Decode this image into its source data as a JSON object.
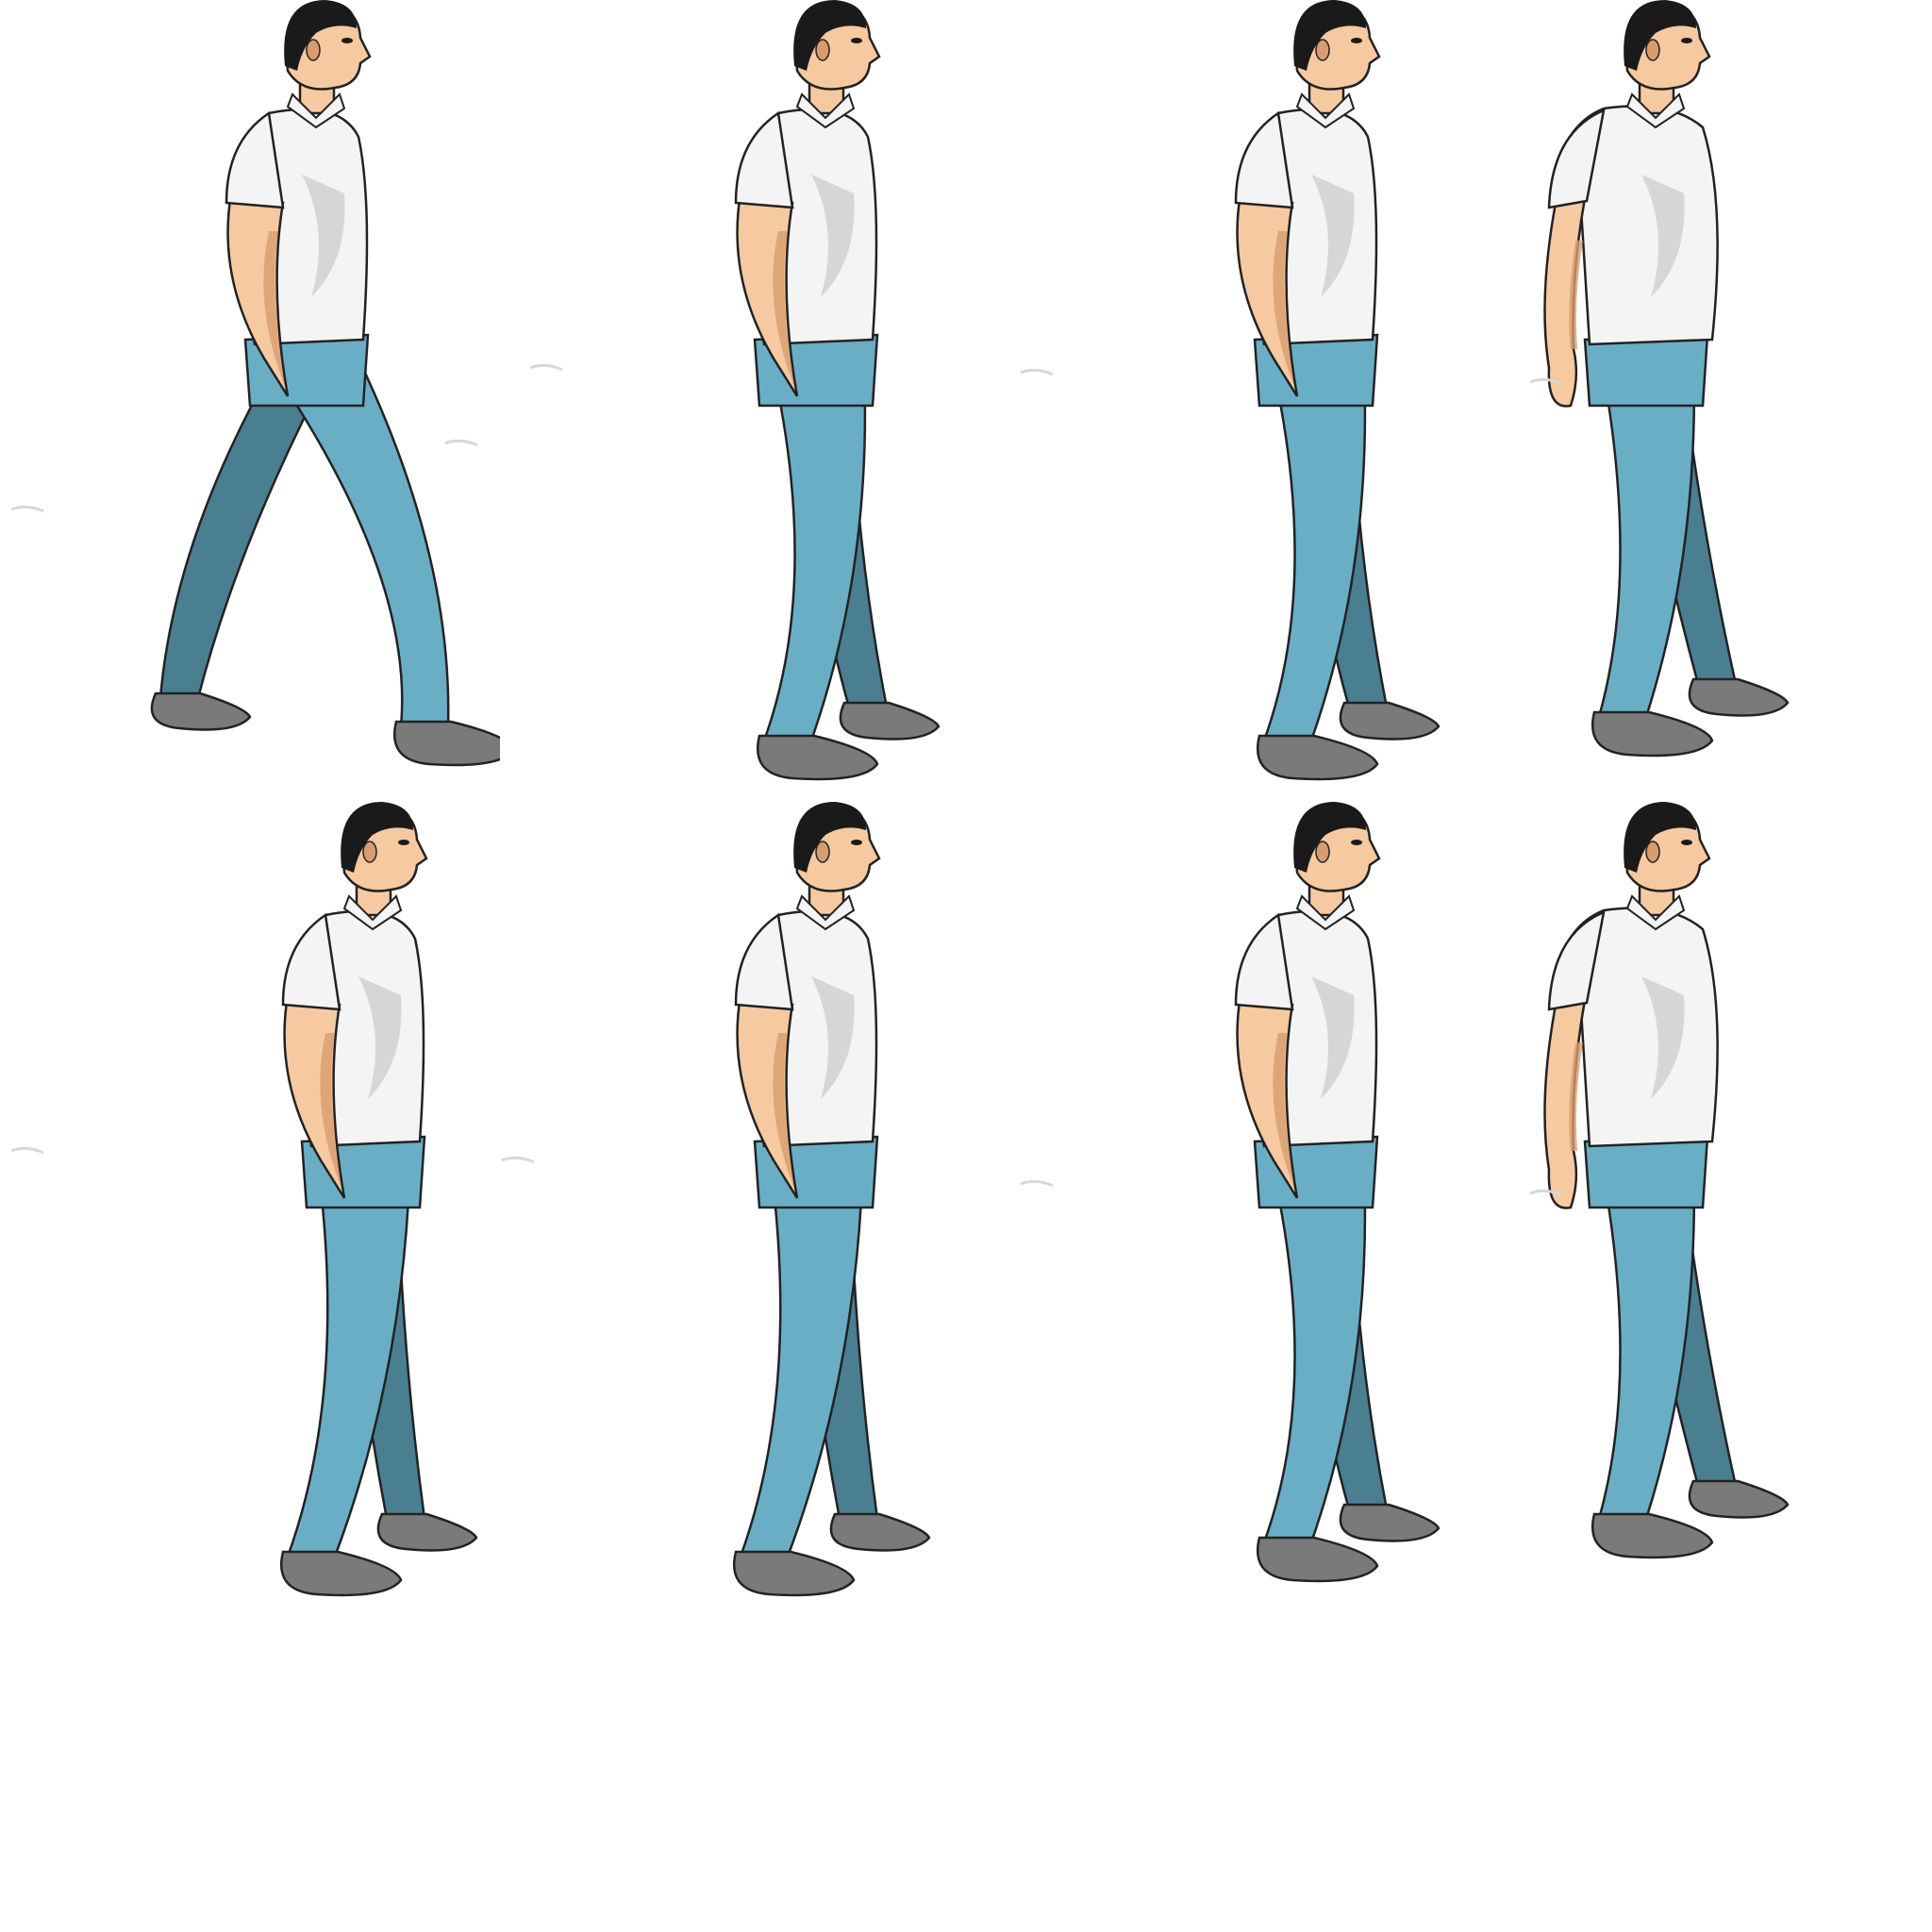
{
  "sheet": {
    "type": "character walk-cycle sprite sheet",
    "rows": 2,
    "columns": 4
  },
  "colors": {
    "background": "#ffffff",
    "hair": "#1a1a1a",
    "skin": "#f6c9a0",
    "skin_shadow": "#d89c6e",
    "shirt": "#f4f4f4",
    "shirt_shadow": "#c9c9c9",
    "pants": "#6aaec6",
    "pants_shadow": "#4a7f92",
    "socks": "#7a7a7a",
    "socks_shadow": "#5e5e5e",
    "outline": "#222222",
    "smudge": "#d8d8d8"
  },
  "frames": [
    {
      "row": 1,
      "col": 1,
      "pose": "stride-wide",
      "arm": "hand-in-pocket"
    },
    {
      "row": 1,
      "col": 2,
      "pose": "pass",
      "arm": "hand-in-pocket"
    },
    {
      "row": 1,
      "col": 3,
      "pose": "pass",
      "arm": "hand-in-pocket"
    },
    {
      "row": 1,
      "col": 4,
      "pose": "stand-three-quarter",
      "arm": "arm-down"
    },
    {
      "row": 2,
      "col": 1,
      "pose": "step",
      "arm": "hand-in-pocket"
    },
    {
      "row": 2,
      "col": 2,
      "pose": "step",
      "arm": "hand-in-pocket"
    },
    {
      "row": 2,
      "col": 3,
      "pose": "pass",
      "arm": "hand-in-pocket"
    },
    {
      "row": 2,
      "col": 4,
      "pose": "stand-three-quarter",
      "arm": "arm-down"
    }
  ]
}
